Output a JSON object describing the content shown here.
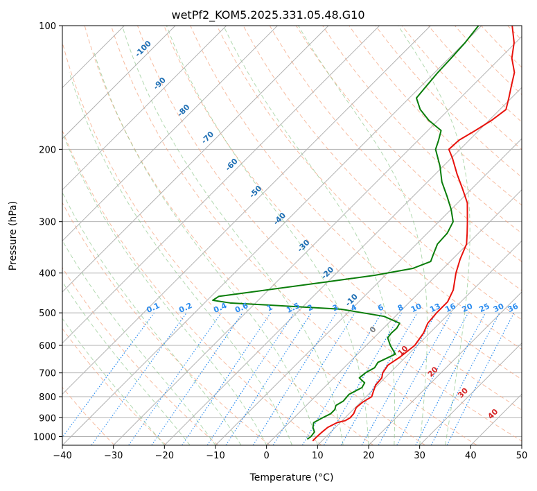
{
  "chart_data": {
    "type": "line",
    "subtype": "skew-t log-p diagram",
    "title": "wetPf2_KOM5.2025.331.05.48.G10",
    "xlabel": "Temperature (°C)",
    "ylabel": "Pressure (hPa)",
    "xlim": [
      -40,
      50
    ],
    "ylim": [
      1050,
      100
    ],
    "x_ticks": [
      -40,
      -30,
      -20,
      -10,
      0,
      10,
      20,
      30,
      40,
      50
    ],
    "y_ticks": [
      100,
      200,
      300,
      400,
      500,
      600,
      700,
      800,
      900,
      1000
    ],
    "isotherms_deg_c": [
      -110,
      -100,
      -90,
      -80,
      -70,
      -60,
      -50,
      -40,
      -30,
      -20,
      -10,
      0,
      10,
      20,
      30,
      40,
      50
    ],
    "dry_adiabats_k": [
      230,
      240,
      250,
      260,
      270,
      280,
      290,
      300,
      310,
      320,
      330,
      340,
      350,
      360,
      370,
      380,
      390,
      400,
      410,
      420,
      430,
      440,
      450,
      460,
      470
    ],
    "moist_adiabats_start_deg_c": [
      -20,
      -15,
      -10,
      -5,
      0,
      5,
      10,
      15,
      20,
      25,
      30,
      35
    ],
    "mixing_ratio_lines_g_kg": [
      0.1,
      0.2,
      0.4,
      0.6,
      1,
      1.5,
      2,
      3,
      4,
      6,
      8,
      10,
      13,
      16,
      20,
      25,
      30,
      36
    ],
    "mixing_ratio_labels": [
      "0.1",
      "0.2",
      "0.4",
      "0.6",
      "1",
      "1.5",
      "2",
      "3",
      "4",
      "6",
      "8",
      "10",
      "13",
      "16",
      "20",
      "25",
      "30",
      "36"
    ],
    "isotherm_labels": [
      {
        "text": "-100",
        "value": -100
      },
      {
        "text": "-90",
        "value": -90
      },
      {
        "text": "-80",
        "value": -80
      },
      {
        "text": "-70",
        "value": -70
      },
      {
        "text": "-60",
        "value": -60
      },
      {
        "text": "-50",
        "value": -50
      },
      {
        "text": "-40",
        "value": -40
      },
      {
        "text": "-30",
        "value": -30
      },
      {
        "text": "-20",
        "value": -20
      },
      {
        "text": "-10",
        "value": -10
      },
      {
        "text": "0",
        "value": 0
      },
      {
        "text": "10",
        "value": 10
      },
      {
        "text": "20",
        "value": 20
      },
      {
        "text": "30",
        "value": 30
      },
      {
        "text": "40",
        "value": 40
      }
    ],
    "series": [
      {
        "name": "Temperature",
        "color": "#e8120c",
        "points": [
          {
            "p": 1025,
            "t": 8.2
          },
          {
            "p": 1000,
            "t": 8.2
          },
          {
            "p": 975,
            "t": 8.3
          },
          {
            "p": 950,
            "t": 8.5
          },
          {
            "p": 925,
            "t": 9.4
          },
          {
            "p": 915,
            "t": 10.6
          },
          {
            "p": 900,
            "t": 11.0
          },
          {
            "p": 880,
            "t": 10.9
          },
          {
            "p": 850,
            "t": 10.2
          },
          {
            "p": 825,
            "t": 10.4
          },
          {
            "p": 800,
            "t": 11.1
          },
          {
            "p": 780,
            "t": 10.5
          },
          {
            "p": 750,
            "t": 9.6
          },
          {
            "p": 720,
            "t": 9.4
          },
          {
            "p": 700,
            "t": 8.6
          },
          {
            "p": 670,
            "t": 8.1
          },
          {
            "p": 640,
            "t": 8.9
          },
          {
            "p": 600,
            "t": 9.5
          },
          {
            "p": 560,
            "t": 8.8
          },
          {
            "p": 530,
            "t": 7.7
          },
          {
            "p": 500,
            "t": 7.4
          },
          {
            "p": 470,
            "t": 7.4
          },
          {
            "p": 440,
            "t": 6.2
          },
          {
            "p": 400,
            "t": 3.4
          },
          {
            "p": 370,
            "t": 1.5
          },
          {
            "p": 340,
            "t": -0.2
          },
          {
            "p": 320,
            "t": -2.2
          },
          {
            "p": 300,
            "t": -4.4
          },
          {
            "p": 270,
            "t": -8.1
          },
          {
            "p": 250,
            "t": -11.7
          },
          {
            "p": 230,
            "t": -15.7
          },
          {
            "p": 210,
            "t": -19.8
          },
          {
            "p": 200,
            "t": -22.2
          },
          {
            "p": 190,
            "t": -22.0
          },
          {
            "p": 180,
            "t": -20.7
          },
          {
            "p": 170,
            "t": -19.5
          },
          {
            "p": 160,
            "t": -18.8
          },
          {
            "p": 150,
            "t": -20.5
          },
          {
            "p": 140,
            "t": -22.4
          },
          {
            "p": 130,
            "t": -24.4
          },
          {
            "p": 120,
            "t": -27.7
          },
          {
            "p": 110,
            "t": -30.3
          },
          {
            "p": 100,
            "t": -34.0
          }
        ]
      },
      {
        "name": "Dewpoint",
        "color": "#0a7d0a",
        "points": [
          {
            "p": 1015,
            "t": 6.8
          },
          {
            "p": 1000,
            "t": 7.0
          },
          {
            "p": 975,
            "t": 6.8
          },
          {
            "p": 950,
            "t": 5.6
          },
          {
            "p": 925,
            "t": 4.8
          },
          {
            "p": 900,
            "t": 5.6
          },
          {
            "p": 880,
            "t": 6.4
          },
          {
            "p": 860,
            "t": 6.4
          },
          {
            "p": 840,
            "t": 5.8
          },
          {
            "p": 820,
            "t": 6.4
          },
          {
            "p": 790,
            "t": 6.2
          },
          {
            "p": 760,
            "t": 7.4
          },
          {
            "p": 740,
            "t": 7.0
          },
          {
            "p": 720,
            "t": 5.0
          },
          {
            "p": 700,
            "t": 5.2
          },
          {
            "p": 680,
            "t": 6.0
          },
          {
            "p": 660,
            "t": 5.6
          },
          {
            "p": 630,
            "t": 7.4
          },
          {
            "p": 600,
            "t": 4.7
          },
          {
            "p": 575,
            "t": 2.7
          },
          {
            "p": 560,
            "t": 2.5
          },
          {
            "p": 545,
            "t": 2.6
          },
          {
            "p": 530,
            "t": 2.2
          },
          {
            "p": 510,
            "t": -2.2
          },
          {
            "p": 490,
            "t": -12.0
          },
          {
            "p": 478,
            "t": -28.0
          },
          {
            "p": 473,
            "t": -35.0
          },
          {
            "p": 466,
            "t": -38.9
          },
          {
            "p": 456,
            "t": -38.5
          },
          {
            "p": 445,
            "t": -33.0
          },
          {
            "p": 420,
            "t": -20.0
          },
          {
            "p": 405,
            "t": -12.0
          },
          {
            "p": 390,
            "t": -6.0
          },
          {
            "p": 375,
            "t": -3.8
          },
          {
            "p": 360,
            "t": -4.7
          },
          {
            "p": 340,
            "t": -5.9
          },
          {
            "p": 320,
            "t": -6.1
          },
          {
            "p": 300,
            "t": -7.2
          },
          {
            "p": 280,
            "t": -10.0
          },
          {
            "p": 260,
            "t": -13.4
          },
          {
            "p": 240,
            "t": -17.2
          },
          {
            "p": 220,
            "t": -20.6
          },
          {
            "p": 200,
            "t": -24.8
          },
          {
            "p": 190,
            "t": -26.0
          },
          {
            "p": 180,
            "t": -27.4
          },
          {
            "p": 170,
            "t": -31.8
          },
          {
            "p": 160,
            "t": -35.6
          },
          {
            "p": 150,
            "t": -38.6
          },
          {
            "p": 140,
            "t": -39.0
          },
          {
            "p": 130,
            "t": -39.4
          },
          {
            "p": 120,
            "t": -39.6
          },
          {
            "p": 110,
            "t": -39.9
          },
          {
            "p": 100,
            "t": -40.6
          }
        ]
      }
    ],
    "colors": {
      "isotherm_grid": "#b2b2b2",
      "dry_adiabat": "#f4a582",
      "moist_adiabat": "#7fbf7b",
      "mixing_ratio": "#2b8cef",
      "isotherm_label_cold": "#1f6fb4",
      "isotherm_label_warm": "#d62728",
      "isotherm_label_zero": "#7f7f7f"
    }
  }
}
